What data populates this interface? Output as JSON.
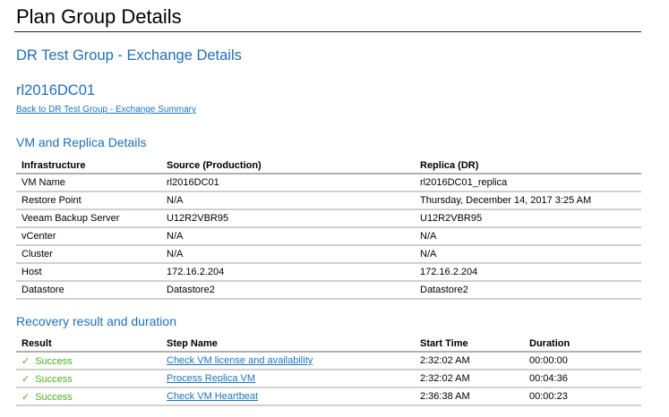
{
  "page_title": "Plan Group Details",
  "group_title": "DR Test Group - Exchange Details",
  "vm_title": "rl2016DC01",
  "back_link": "Back to DR Test Group - Exchange Summary",
  "vm_section": {
    "title": "VM and Replica Details",
    "headers": [
      "Infrastructure",
      "Source (Production)",
      "Replica (DR)"
    ],
    "rows": [
      [
        "VM Name",
        "rl2016DC01",
        "rl2016DC01_replica"
      ],
      [
        "Restore Point",
        "N/A",
        "Thursday, December 14, 2017 3:25 AM"
      ],
      [
        "Veeam Backup Server",
        "U12R2VBR95",
        "U12R2VBR95"
      ],
      [
        "vCenter",
        "N/A",
        "N/A"
      ],
      [
        "Cluster",
        "N/A",
        "N/A"
      ],
      [
        "Host",
        "172.16.2.204",
        "172.16.2.204"
      ],
      [
        "Datastore",
        "Datastore2",
        "Datastore2"
      ]
    ]
  },
  "recovery_section": {
    "title": "Recovery result and duration",
    "headers": [
      "Result",
      "Step Name",
      "Start Time",
      "Duration"
    ],
    "rows": [
      {
        "icon": "check-icon",
        "result": "Success",
        "step": "Check VM license and availability",
        "start": "2:32:02 AM",
        "duration": "00:00:00"
      },
      {
        "icon": "check-icon",
        "result": "Success",
        "step": "Process Replica VM",
        "start": "2:32:02 AM",
        "duration": "00:04:36"
      },
      {
        "icon": "check-icon",
        "result": "Success",
        "step": "Check VM Heartbeat",
        "start": "2:36:38 AM",
        "duration": "00:00:23"
      }
    ]
  },
  "colors": {
    "heading": "#1f6fb5",
    "link": "#1a73c0",
    "success": "#4caf1e"
  }
}
